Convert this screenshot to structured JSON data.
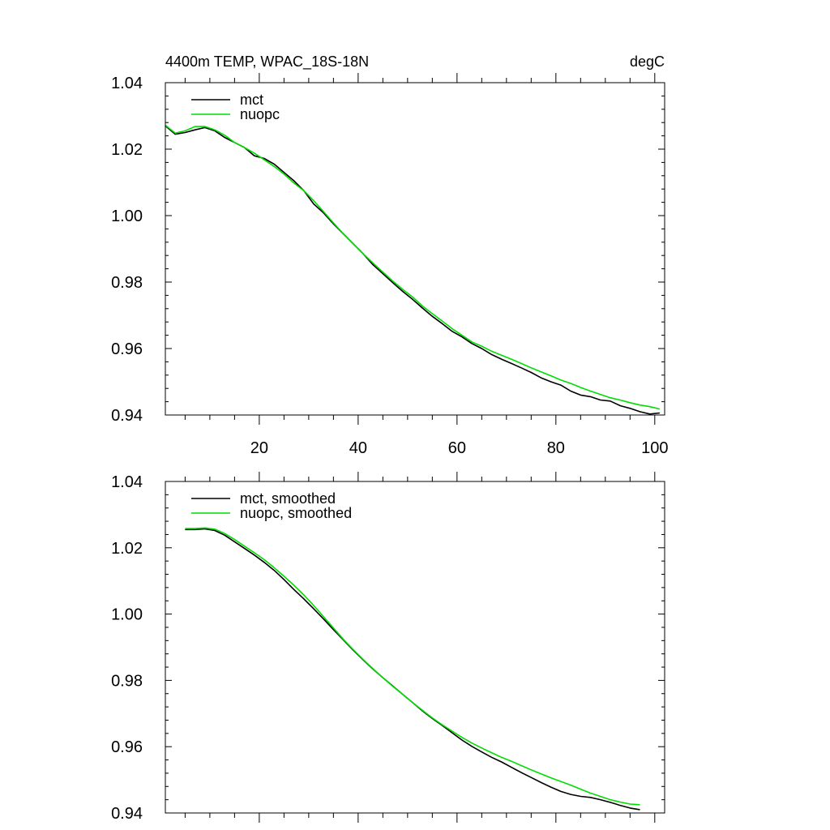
{
  "figure": {
    "title_left": "4400m TEMP, WPAC_18S-18N",
    "title_right": "degC"
  },
  "colors": {
    "mct": "#000000",
    "nuopc": "#00dd00",
    "axis": "#000000",
    "background": "#ffffff"
  },
  "chart_data": [
    {
      "type": "line",
      "title": "4400m TEMP, WPAC_18S-18N",
      "units": "degC",
      "xlim": [
        1,
        102
      ],
      "ylim": [
        0.94,
        1.04
      ],
      "xticks": [
        20,
        40,
        60,
        80,
        100
      ],
      "xtick_labels": [
        "20",
        "40",
        "60",
        "80",
        "100"
      ],
      "yticks": [
        0.94,
        0.96,
        0.98,
        1.0,
        1.02,
        1.04
      ],
      "ytick_labels": [
        "0.94",
        "0.96",
        "0.98",
        "1.00",
        "1.02",
        "1.04"
      ],
      "legend_position": "top-left",
      "series": [
        {
          "name": "mct",
          "color": "#000000",
          "x": [
            1,
            3,
            5,
            7,
            9,
            11,
            13,
            15,
            17,
            19,
            21,
            23,
            25,
            27,
            29,
            31,
            33,
            35,
            37,
            39,
            41,
            43,
            45,
            47,
            49,
            51,
            53,
            55,
            57,
            59,
            61,
            63,
            65,
            67,
            69,
            71,
            73,
            75,
            77,
            79,
            81,
            83,
            85,
            87,
            89,
            91,
            93,
            95,
            97,
            99,
            101
          ],
          "y": [
            1.027,
            1.0245,
            1.025,
            1.0258,
            1.0265,
            1.0255,
            1.0235,
            1.022,
            1.0205,
            1.018,
            1.0172,
            1.0155,
            1.013,
            1.0105,
            1.0075,
            1.0035,
            1.0008,
            0.9975,
            0.9945,
            0.9915,
            0.9885,
            0.9852,
            0.9825,
            0.9798,
            0.9772,
            0.9748,
            0.9722,
            0.9697,
            0.9675,
            0.9652,
            0.9635,
            0.9615,
            0.96,
            0.9582,
            0.9568,
            0.9555,
            0.9542,
            0.9528,
            0.9512,
            0.95,
            0.949,
            0.9472,
            0.946,
            0.9455,
            0.9445,
            0.9442,
            0.9428,
            0.942,
            0.941,
            0.9403,
            0.9406
          ]
        },
        {
          "name": "nuopc",
          "color": "#00dd00",
          "x": [
            1,
            3,
            5,
            7,
            9,
            11,
            13,
            15,
            17,
            19,
            21,
            23,
            25,
            27,
            29,
            31,
            33,
            35,
            37,
            39,
            41,
            43,
            45,
            47,
            49,
            51,
            53,
            55,
            57,
            59,
            61,
            63,
            65,
            67,
            69,
            71,
            73,
            75,
            77,
            79,
            81,
            83,
            85,
            87,
            89,
            91,
            93,
            95,
            97,
            99,
            101
          ],
          "y": [
            1.0272,
            1.0248,
            1.0255,
            1.0268,
            1.0268,
            1.0258,
            1.0242,
            1.022,
            1.0205,
            1.0188,
            1.0168,
            1.0148,
            1.0125,
            1.0098,
            1.0075,
            1.0045,
            1.0012,
            0.9978,
            0.9945,
            0.9915,
            0.9885,
            0.9857,
            0.983,
            0.9803,
            0.9778,
            0.9755,
            0.9728,
            0.9705,
            0.9683,
            0.966,
            0.964,
            0.962,
            0.9607,
            0.9592,
            0.958,
            0.9568,
            0.9555,
            0.9542,
            0.953,
            0.9518,
            0.9505,
            0.9495,
            0.9483,
            0.9472,
            0.9462,
            0.9452,
            0.9445,
            0.9437,
            0.943,
            0.9425,
            0.9418
          ]
        }
      ]
    },
    {
      "type": "line",
      "title": "",
      "xlim": [
        1,
        102
      ],
      "ylim": [
        0.94,
        1.04
      ],
      "yticks": [
        0.94,
        0.96,
        0.98,
        1.0,
        1.02,
        1.04
      ],
      "ytick_labels": [
        "0.94",
        "0.96",
        "0.98",
        "1.00",
        "1.02",
        "1.04"
      ],
      "xticks": [
        20,
        40,
        60,
        80,
        100
      ],
      "legend_position": "top-left",
      "series": [
        {
          "name": "mct, smoothed",
          "color": "#000000",
          "x": [
            5,
            7,
            9,
            11,
            13,
            15,
            17,
            19,
            21,
            23,
            25,
            27,
            29,
            31,
            33,
            35,
            37,
            39,
            41,
            43,
            45,
            47,
            49,
            51,
            53,
            55,
            57,
            59,
            61,
            63,
            65,
            67,
            69,
            71,
            73,
            75,
            77,
            79,
            81,
            83,
            85,
            87,
            89,
            91,
            93,
            95,
            97
          ],
          "y": [
            1.0255,
            1.0255,
            1.0257,
            1.0252,
            1.0238,
            1.0218,
            1.0198,
            1.0178,
            1.0156,
            1.0132,
            1.0104,
            1.0074,
            1.0046,
            1.0016,
            0.9985,
            0.9953,
            0.9922,
            0.9891,
            0.9862,
            0.9834,
            0.9808,
            0.9783,
            0.9758,
            0.9733,
            0.9708,
            0.9685,
            0.9664,
            0.9642,
            0.962,
            0.9601,
            0.9584,
            0.9568,
            0.9554,
            0.9538,
            0.9522,
            0.9507,
            0.9492,
            0.9478,
            0.9465,
            0.9456,
            0.945,
            0.9447,
            0.944,
            0.9432,
            0.9423,
            0.9415,
            0.941
          ]
        },
        {
          "name": "nuopc, smoothed",
          "color": "#00dd00",
          "x": [
            5,
            7,
            9,
            11,
            13,
            15,
            17,
            19,
            21,
            23,
            25,
            27,
            29,
            31,
            33,
            35,
            37,
            39,
            41,
            43,
            45,
            47,
            49,
            51,
            53,
            55,
            57,
            59,
            61,
            63,
            65,
            67,
            69,
            71,
            73,
            75,
            77,
            79,
            81,
            83,
            85,
            87,
            89,
            91,
            93,
            95,
            97
          ],
          "y": [
            1.0258,
            1.0258,
            1.026,
            1.0256,
            1.0243,
            1.0225,
            1.0205,
            1.0185,
            1.0164,
            1.014,
            1.0114,
            1.0087,
            1.0058,
            1.0026,
            0.9992,
            0.9958,
            0.9924,
            0.9893,
            0.9863,
            0.9835,
            0.9808,
            0.9782,
            0.9758,
            0.9733,
            0.971,
            0.9687,
            0.9666,
            0.9647,
            0.9628,
            0.9611,
            0.9596,
            0.9582,
            0.9568,
            0.9556,
            0.9543,
            0.953,
            0.9518,
            0.9506,
            0.9495,
            0.9484,
            0.9472,
            0.946,
            0.945,
            0.944,
            0.9433,
            0.9427,
            0.9425
          ]
        }
      ]
    }
  ]
}
